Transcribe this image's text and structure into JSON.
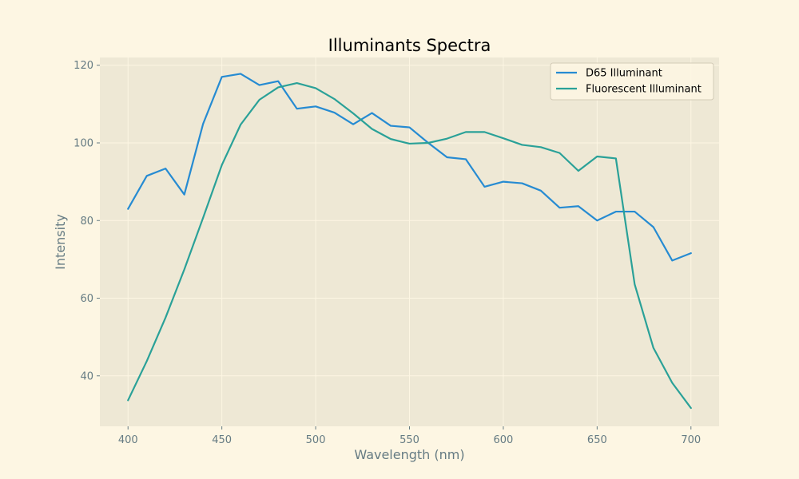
{
  "chart_data": {
    "type": "line",
    "title": "Illuminants Spectra",
    "xlabel": "Wavelength (nm)",
    "ylabel": "Intensity",
    "xlim": [
      385,
      715
    ],
    "ylim": [
      27,
      122
    ],
    "xticks": [
      400,
      450,
      500,
      550,
      600,
      650,
      700
    ],
    "yticks": [
      40,
      60,
      80,
      100,
      120
    ],
    "grid": true,
    "legend_position": "top-right",
    "x": [
      400,
      410,
      420,
      430,
      440,
      450,
      460,
      470,
      480,
      490,
      500,
      510,
      520,
      530,
      540,
      550,
      560,
      570,
      580,
      590,
      600,
      610,
      620,
      630,
      640,
      650,
      660,
      670,
      680,
      690,
      700
    ],
    "series": [
      {
        "name": "D65 Illuminant",
        "color": "#268bd2",
        "values": [
          83.0,
          91.5,
          93.4,
          86.7,
          104.9,
          117.0,
          117.8,
          114.9,
          115.9,
          108.8,
          109.4,
          107.8,
          104.8,
          107.7,
          104.4,
          104.0,
          100.0,
          96.3,
          95.8,
          88.7,
          90.0,
          89.6,
          87.7,
          83.3,
          83.7,
          80.0,
          82.3,
          82.3,
          78.3,
          69.7,
          71.6
        ]
      },
      {
        "name": "Fluorescent Illuminant",
        "color": "#2aa198",
        "values": [
          33.7,
          43.8,
          55.0,
          67.4,
          80.7,
          94.3,
          104.7,
          111.1,
          114.3,
          115.4,
          114.1,
          111.3,
          107.6,
          103.6,
          101.0,
          99.8,
          100.0,
          101.1,
          102.8,
          102.8,
          101.2,
          99.5,
          98.9,
          97.4,
          92.8,
          96.5,
          96.0,
          63.6,
          47.2,
          38.2,
          31.7
        ]
      }
    ]
  },
  "colors": {
    "page_background": "#fdf6e3",
    "plot_background": "#eee8d5",
    "grid": "#fdf6e3",
    "tick_label": "#657b83"
  }
}
